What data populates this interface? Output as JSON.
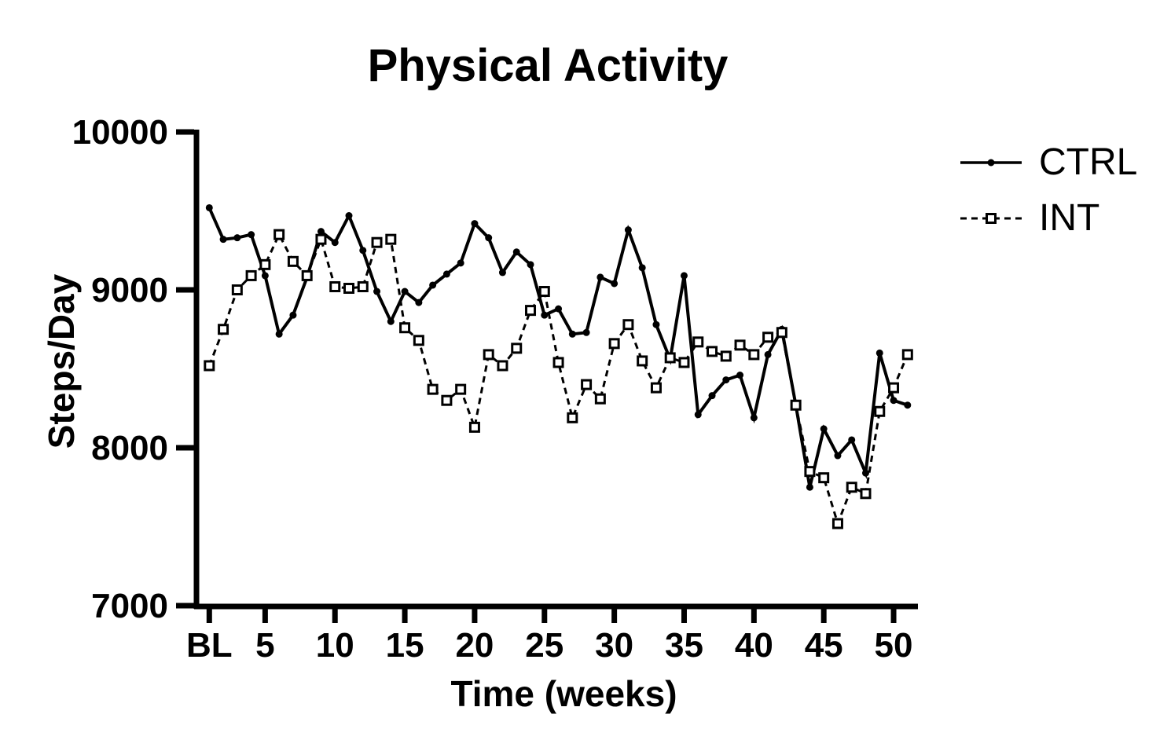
{
  "title": "Physical Activity",
  "colors": {
    "foreground": "#000000",
    "background": "#ffffff"
  },
  "legend": {
    "position": "right",
    "items": [
      {
        "label": "CTRL",
        "swatch": "solid-line-filled-circle"
      },
      {
        "label": "INT",
        "swatch": "dashed-line-open-square"
      }
    ]
  },
  "chart_data": {
    "type": "line",
    "title": "Physical Activity",
    "xlabel": "Time (weeks)",
    "ylabel": "Steps/Day",
    "ylim": [
      7000,
      10000
    ],
    "y_ticks": [
      10000,
      9000,
      8000,
      7000
    ],
    "x_tick_labels": [
      "BL",
      "5",
      "10",
      "15",
      "20",
      "25",
      "30",
      "35",
      "40",
      "45",
      "50"
    ],
    "x_tick_weeks": [
      1,
      5,
      10,
      15,
      20,
      25,
      30,
      35,
      40,
      45,
      50
    ],
    "grid": false,
    "legend_position": "right",
    "x": [
      1,
      2,
      3,
      4,
      5,
      6,
      7,
      8,
      9,
      10,
      11,
      12,
      13,
      14,
      15,
      16,
      17,
      18,
      19,
      20,
      21,
      22,
      23,
      24,
      25,
      26,
      27,
      28,
      29,
      30,
      31,
      32,
      33,
      34,
      35,
      36,
      37,
      38,
      39,
      40,
      41,
      42,
      43,
      44,
      45,
      46,
      47,
      48,
      49,
      50,
      51
    ],
    "series": [
      {
        "name": "CTRL",
        "line_style": "solid",
        "marker": "filled-circle",
        "color": "#000000",
        "values": [
          9520,
          9320,
          9330,
          9350,
          9090,
          8720,
          8840,
          9080,
          9370,
          9300,
          9470,
          9250,
          8990,
          8800,
          8990,
          8920,
          9030,
          9100,
          9170,
          9420,
          9330,
          9110,
          9240,
          9160,
          8840,
          8880,
          8720,
          8730,
          9080,
          9040,
          9380,
          9140,
          8780,
          8560,
          9090,
          8210,
          8330,
          8430,
          8460,
          8190,
          8590,
          8750,
          8270,
          7750,
          8120,
          7950,
          8050,
          7840,
          8600,
          8300,
          8270
        ]
      },
      {
        "name": "INT",
        "line_style": "dashed",
        "marker": "open-square",
        "color": "#000000",
        "values": [
          8520,
          8750,
          9000,
          9090,
          9160,
          9350,
          9180,
          9090,
          9320,
          9020,
          9010,
          9020,
          9300,
          9320,
          8760,
          8680,
          8370,
          8300,
          8370,
          8130,
          8590,
          8520,
          8630,
          8870,
          8990,
          8540,
          8190,
          8400,
          8310,
          8660,
          8780,
          8550,
          8380,
          8570,
          8540,
          8670,
          8610,
          8580,
          8650,
          8590,
          8700,
          8730,
          8270,
          7850,
          7810,
          7520,
          7750,
          7710,
          8230,
          8380,
          8590
        ]
      }
    ]
  }
}
